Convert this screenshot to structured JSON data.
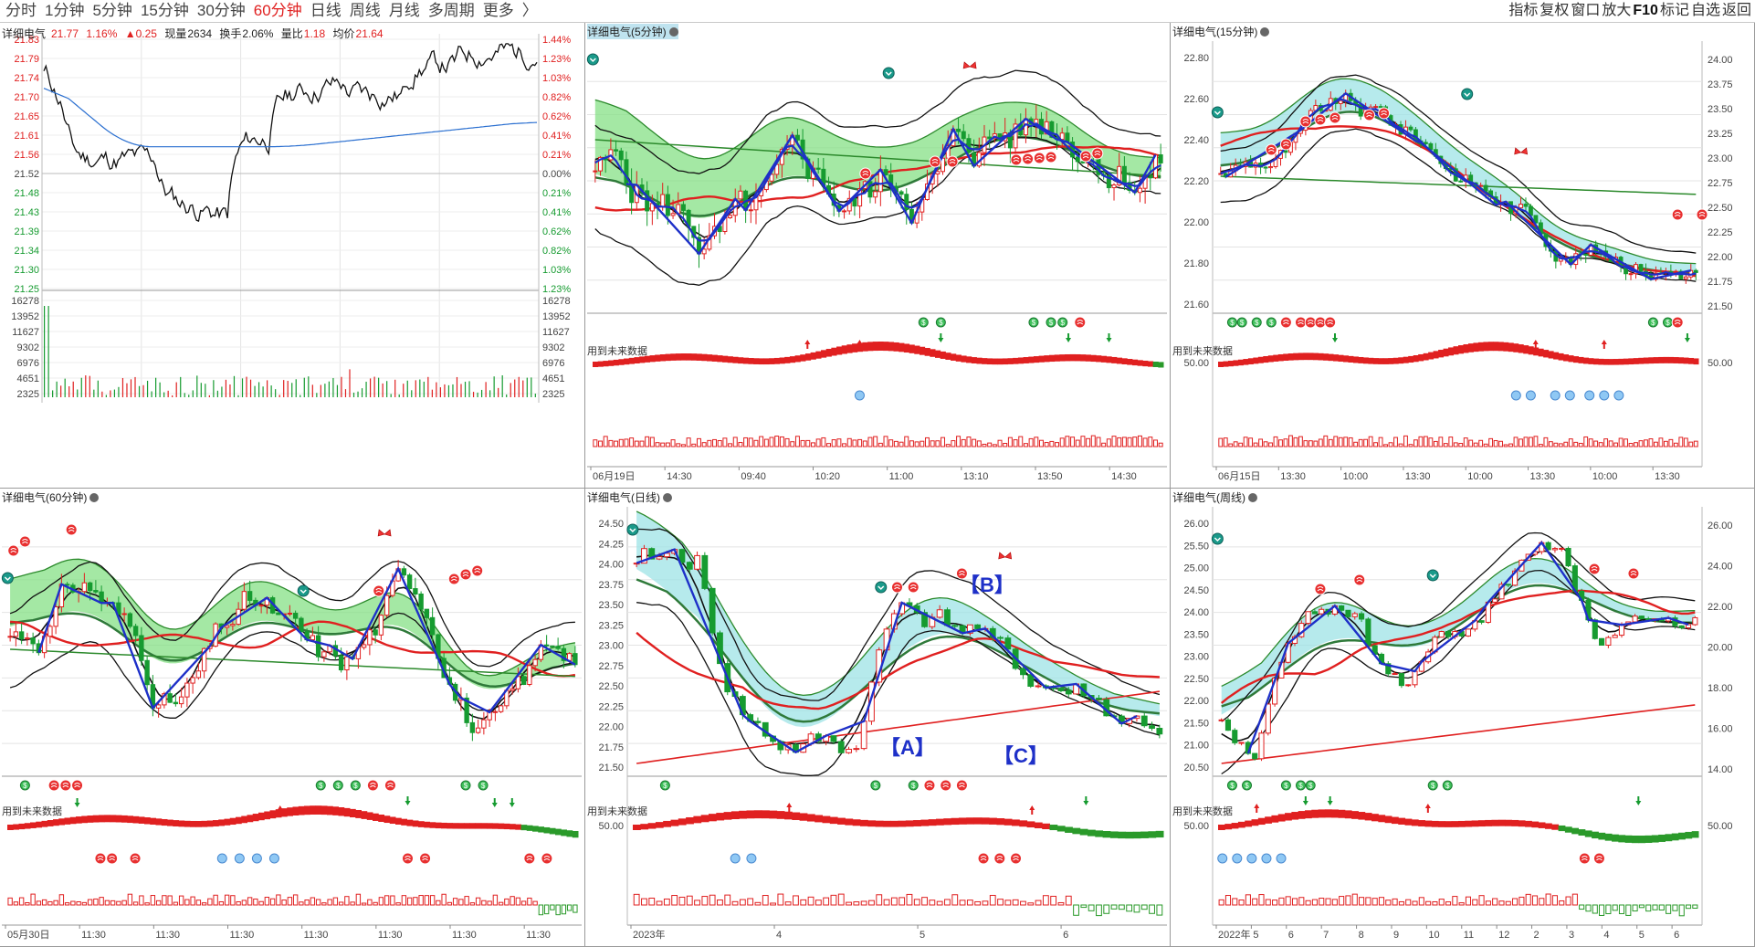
{
  "toolbar": {
    "tabs": [
      "分时",
      "1分钟",
      "5分钟",
      "15分钟",
      "30分钟",
      "60分钟",
      "日线",
      "周线",
      "月线",
      "多周期",
      "更多"
    ],
    "active_tab": "60分钟",
    "more_chevron": "〉",
    "right_tools": [
      "指标",
      "复权",
      "窗口",
      "放大",
      "F10",
      "标记",
      "自选",
      "返回"
    ]
  },
  "colors": {
    "up": "#e02020",
    "down": "#169b30",
    "line_blue": "#1e30c8",
    "ma_red": "#e02020",
    "green_fill": "#86e086",
    "cyan_fill": "#9ee3e6"
  },
  "intraday": {
    "name": "详细电气",
    "price": "21.77",
    "pct": "1.16%",
    "change": "▲0.25",
    "volume_label": "现量",
    "volume": "2634",
    "turnover_label": "换手",
    "turnover": "2.06%",
    "volratio_label": "量比",
    "volratio": "1.18",
    "avg_label": "均价",
    "avg": "21.64",
    "price_ticks": [
      "21.83",
      "21.79",
      "21.74",
      "21.70",
      "21.65",
      "21.61",
      "21.56",
      "21.52",
      "21.48",
      "21.43",
      "21.39",
      "21.34",
      "21.30",
      "21.25"
    ],
    "pct_ticks": [
      "1.44%",
      "1.23%",
      "1.03%",
      "0.82%",
      "0.62%",
      "0.41%",
      "0.21%",
      "0.00%",
      "0.21%",
      "0.41%",
      "0.62%",
      "0.82%",
      "1.03%",
      "1.23%"
    ],
    "vol_ticks": [
      "16278",
      "13952",
      "11627",
      "9302",
      "6976",
      "4651",
      "2325"
    ]
  },
  "panels": [
    {
      "id": "p5m",
      "title": "详细电气(5分钟)",
      "future": "用到未来数据",
      "price_ticks": [],
      "ind_tick": "",
      "dates": [
        "06月19日",
        "14:30",
        "09:40",
        "10:20",
        "11:00",
        "13:10",
        "13:50",
        "14:30"
      ]
    },
    {
      "id": "p15m",
      "title": "详细电气(15分钟)",
      "future": "用到未来数据",
      "price_ticks": [
        "22.80",
        "22.60",
        "22.40",
        "22.20",
        "22.00",
        "21.80",
        "21.60"
      ],
      "right_ticks": [
        "24.00",
        "23.75",
        "23.50",
        "23.25",
        "23.00",
        "22.75",
        "22.50",
        "22.25",
        "22.00",
        "21.75",
        "21.50"
      ],
      "ind_tick": "50.00",
      "ind_tick_right": "50.00",
      "dates": [
        "06月15日",
        "13:30",
        "10:00",
        "13:30",
        "10:00",
        "13:30",
        "10:00",
        "13:30"
      ]
    },
    {
      "id": "p60m",
      "title": "详细电气(60分钟)",
      "future": "用到未来数据",
      "price_ticks": [],
      "ind_tick": "",
      "dates": [
        "05月30日",
        "11:30",
        "11:30",
        "11:30",
        "11:30",
        "11:30",
        "11:30",
        "11:30"
      ]
    },
    {
      "id": "pday",
      "title": "详细电气(日线)",
      "future": "用到未来数据",
      "price_ticks": [
        "24.50",
        "24.25",
        "24.00",
        "23.75",
        "23.50",
        "23.25",
        "23.00",
        "22.75",
        "22.50",
        "22.25",
        "22.00",
        "21.75",
        "21.50"
      ],
      "ind_tick": "50.00",
      "dates": [
        "2023年",
        "4",
        "5",
        "6"
      ],
      "labels": {
        "a": "【A】",
        "b": "【B】",
        "c": "【C】"
      }
    },
    {
      "id": "pweek",
      "title": "详细电气(周线)",
      "future": "用到未来数据",
      "price_ticks": [
        "26.00",
        "25.50",
        "25.00",
        "24.50",
        "24.00",
        "23.50",
        "23.00",
        "22.50",
        "22.00",
        "21.50",
        "21.00",
        "20.50"
      ],
      "right_ticks": [
        "26.00",
        "24.00",
        "22.00",
        "20.00",
        "18.00",
        "16.00",
        "14.00"
      ],
      "ind_tick": "50.00",
      "ind_tick_right": "50.00",
      "dates": [
        "2022年",
        "5",
        "6",
        "7",
        "8",
        "9",
        "10",
        "11",
        "12",
        "2",
        "3",
        "4",
        "5",
        "6"
      ]
    }
  ]
}
